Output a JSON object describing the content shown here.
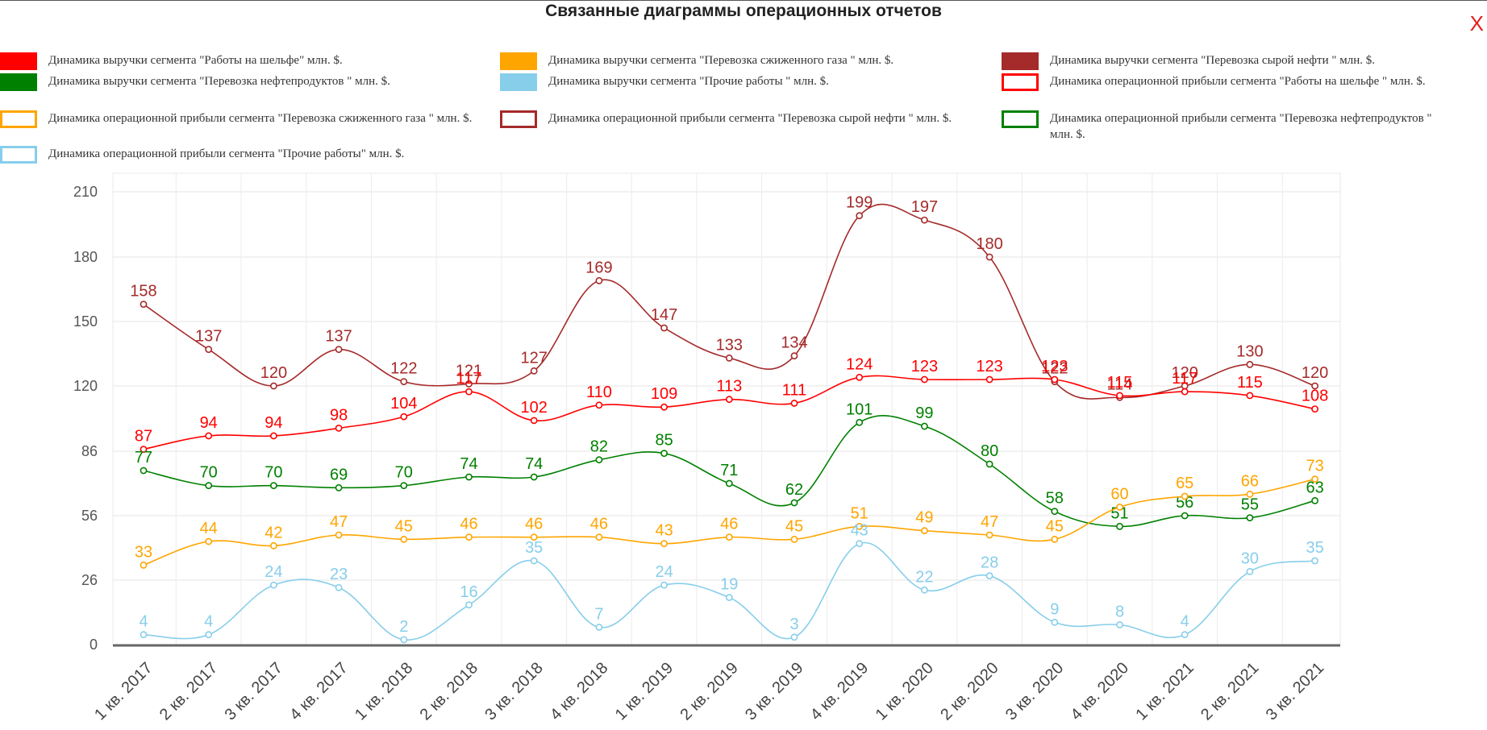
{
  "title": "Связанные диаграммы операционных отчетов",
  "close_label": "X",
  "legend": [
    {
      "label": "Динамика выручки сегмента \"Работы на шельфе\" млн. $.",
      "color": "#ff0000",
      "filled": true
    },
    {
      "label": "Динамика выручки сегмента \"Перевозка сжиженного газа \" млн. $.",
      "color": "#ffa500",
      "filled": true
    },
    {
      "label": "Динамика выручки сегмента \"Перевозка сырой нефти \" млн. $.",
      "color": "#a52a2a",
      "filled": true
    },
    {
      "label": "Динамика выручки сегмента \"Перевозка нефтепродуктов \" млн. $.",
      "color": "#008000",
      "filled": true
    },
    {
      "label": "Динамика выручки сегмента \"Прочие работы \" млн. $.",
      "color": "#87ceeb",
      "filled": true
    },
    {
      "label": "Динамика операционной прибыли сегмента \"Работы на шельфе \" млн. $.",
      "color": "#ff0000",
      "filled": false
    },
    {
      "label": "Динамика операционной прибыли сегмента \"Перевозка сжиженного газа \" млн. $.",
      "color": "#ffa500",
      "filled": false
    },
    {
      "label": "Динамика операционной прибыли сегмента \"Перевозка сырой нефти \" млн. $.",
      "color": "#a52a2a",
      "filled": false
    },
    {
      "label": "Динамика операционной прибыли сегмента \"Перевозка нефтепродуктов \" млн. $.",
      "color": "#008000",
      "filled": false
    },
    {
      "label": "Динамика операционной прибыли сегмента \"Прочие работы\" млн. $.",
      "color": "#87ceeb",
      "filled": false
    }
  ],
  "chart_data": {
    "type": "line",
    "categories": [
      "1 кв. 2017",
      "2 кв. 2017",
      "3 кв. 2017",
      "4 кв. 2017",
      "1 кв. 2018",
      "2 кв. 2018",
      "3 кв. 2018",
      "4 кв. 2018",
      "1 кв. 2019",
      "2 кв. 2019",
      "3 кв. 2019",
      "4 кв. 2019",
      "1 кв. 2020",
      "2 кв. 2020",
      "3 кв. 2020",
      "4 кв. 2020",
      "1 кв. 2021",
      "2 кв. 2021",
      "3 кв. 2021"
    ],
    "y_ticks": [
      "0",
      "26",
      "56",
      "86",
      "120",
      "150",
      "180",
      "210"
    ],
    "y_tick_values": [
      0,
      26,
      56,
      86,
      120,
      150,
      180,
      210
    ],
    "ylim": [
      0,
      210
    ],
    "grid": true,
    "series": [
      {
        "color": "#a52a2a",
        "values": [
          158,
          137,
          120,
          137,
          122,
          121,
          127,
          169,
          147,
          133,
          134,
          199,
          197,
          180,
          122,
          114,
          120,
          130,
          120
        ]
      },
      {
        "color": "#ff0000",
        "values": [
          87,
          94,
          94,
          98,
          104,
          117,
          102,
          110,
          109,
          113,
          111,
          124,
          123,
          123,
          123,
          115,
          117,
          115,
          108
        ]
      },
      {
        "color": "#008000",
        "values": [
          77,
          70,
          70,
          69,
          70,
          74,
          74,
          82,
          85,
          71,
          62,
          101,
          99,
          80,
          58,
          51,
          56,
          55,
          63
        ]
      },
      {
        "color": "#ffa500",
        "values": [
          33,
          44,
          42,
          47,
          45,
          46,
          46,
          46,
          43,
          46,
          45,
          51,
          49,
          47,
          45,
          60,
          65,
          66,
          73
        ]
      },
      {
        "color": "#87ceeb",
        "values": [
          4,
          4,
          24,
          23,
          2,
          16,
          35,
          7,
          24,
          19,
          3,
          43,
          22,
          28,
          9,
          8,
          4,
          30,
          35
        ]
      }
    ]
  }
}
